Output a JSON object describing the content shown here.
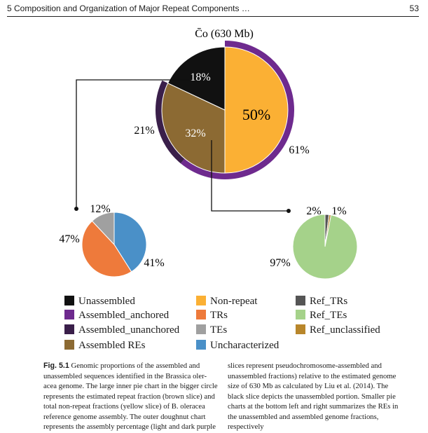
{
  "header": {
    "chapter_title": "5 Composition and Organization of Major Repeat Components …",
    "page_number": "53"
  },
  "chart_data": [
    {
      "type": "pie",
      "title": "C̄o (630 Mb)",
      "slices": [
        {
          "label": "Non-repeat",
          "value": 50,
          "color": "#FBB034",
          "text": "50%"
        },
        {
          "label": "Assembled REs",
          "value": 32,
          "color": "#8C6A33",
          "text": "32%"
        },
        {
          "label": "Unassembled",
          "value": 18,
          "color": "#111111",
          "text": "18%"
        }
      ],
      "ring": [
        {
          "label": "Assembled_anchored",
          "value": 61,
          "color": "#6E2A8E",
          "text": "61%"
        },
        {
          "label": "Assembled_unanchored",
          "value": 21,
          "color": "#3A1F4A",
          "text": "21%"
        }
      ]
    },
    {
      "type": "pie",
      "slices": [
        {
          "label": "Uncharacterized",
          "value": 41,
          "color": "#4A90C8",
          "text": "41%"
        },
        {
          "label": "TRs",
          "value": 47,
          "color": "#EE7A3B",
          "text": "47%"
        },
        {
          "label": "TEs",
          "value": 12,
          "color": "#A0A0A0",
          "text": "12%"
        }
      ]
    },
    {
      "type": "pie",
      "slices": [
        {
          "label": "Ref_TEs",
          "value": 97,
          "color": "#A5D28A",
          "text": "97%"
        },
        {
          "label": "Ref_TRs",
          "value": 2,
          "color": "#555555",
          "text": "2%"
        },
        {
          "label": "Ref_unclassified",
          "value": 1,
          "color": "#B8862B",
          "text": "1%"
        }
      ]
    }
  ],
  "legend": [
    {
      "label": "Unassembled",
      "color": "#111111"
    },
    {
      "label": "Assembled_anchored",
      "color": "#6E2A8E"
    },
    {
      "label": "Assembled_unanchored",
      "color": "#3A1F4A"
    },
    {
      "label": "Assembled REs",
      "color": "#8C6A33"
    },
    {
      "label": "Non-repeat",
      "color": "#FBB034"
    },
    {
      "label": "TRs",
      "color": "#EE7A3B"
    },
    {
      "label": "TEs",
      "color": "#A0A0A0"
    },
    {
      "label": "Uncharacterized",
      "color": "#4A90C8"
    },
    {
      "label": "Ref_TRs",
      "color": "#555555"
    },
    {
      "label": "Ref_TEs",
      "color": "#A5D28A"
    },
    {
      "label": "Ref_unclassified",
      "color": "#B8862B"
    }
  ],
  "caption": {
    "label": "Fig. 5.1",
    "left_lines": [
      "Genomic proportions of the assembled and",
      "unassembled sequences identified in the Brassica oler-",
      "acea genome. The large inner pie chart in the bigger circle",
      "represents the estimated repeat fraction (brown slice) and",
      "total non-repeat fractions (yellow slice) of B. oleracea",
      "reference genome assembly. The outer doughnut chart",
      "represents the assembly percentage (light and dark purple"
    ],
    "right_lines": [
      "slices represent pseudochromosome-assembled and",
      "unassembled fractions) relative to the estimated genome",
      "size of 630 Mb as calculated by Liu et al. (2014). The",
      "black slice depicts the unassembled portion. Smaller pie",
      "charts at the bottom left and right summarizes the REs in",
      "the unassembled and assembled genome fractions,",
      "respectively"
    ]
  }
}
